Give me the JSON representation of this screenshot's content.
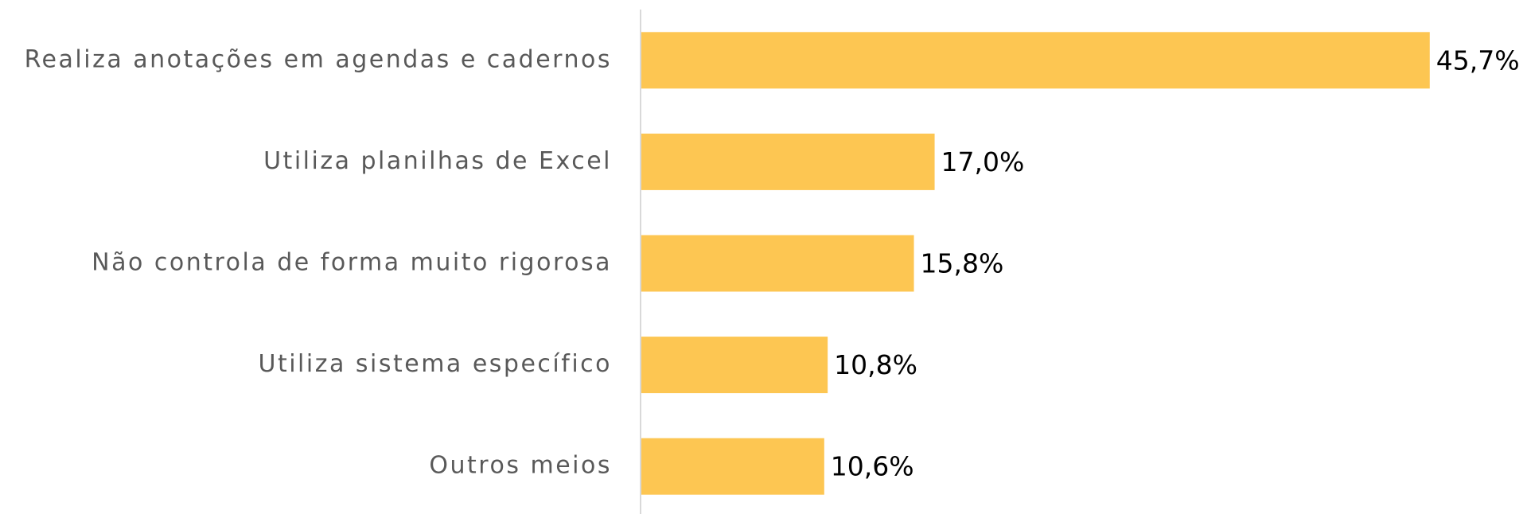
{
  "chart_data": {
    "type": "bar",
    "orientation": "horizontal",
    "categories": [
      "Realiza anotações em agendas e cadernos",
      "Utiliza planilhas de Excel",
      "Não controla de forma muito rigorosa",
      "Utiliza sistema específico",
      "Outros meios"
    ],
    "values": [
      45.7,
      17.0,
      15.8,
      10.8,
      10.6
    ],
    "value_labels": [
      "45,7%",
      "17,0%",
      "15,8%",
      "10,8%",
      "10,6%"
    ],
    "color": "#fdc652",
    "xlim": [
      0,
      50
    ]
  }
}
